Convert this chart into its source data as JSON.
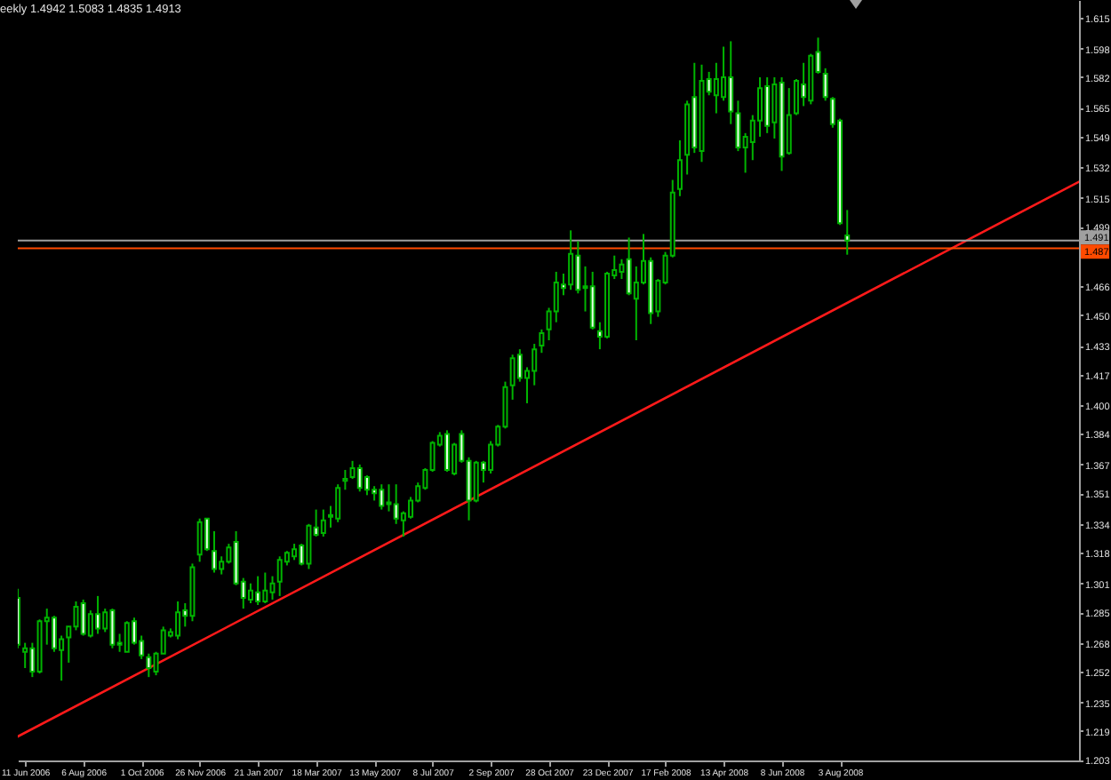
{
  "chart_data": {
    "type": "candlestick",
    "title": "eekly 1.4942 1.5083 1.4835 1.4913",
    "x": [
      "2006-06-04",
      "2006-06-11",
      "2006-06-18",
      "2006-06-25",
      "2006-07-02",
      "2006-07-09",
      "2006-07-16",
      "2006-07-23",
      "2006-07-30",
      "2006-08-06",
      "2006-08-13",
      "2006-08-20",
      "2006-08-27",
      "2006-09-03",
      "2006-09-10",
      "2006-09-17",
      "2006-09-24",
      "2006-10-01",
      "2006-10-08",
      "2006-10-15",
      "2006-10-22",
      "2006-10-29",
      "2006-11-05",
      "2006-11-12",
      "2006-11-19",
      "2006-11-26",
      "2006-12-03",
      "2006-12-10",
      "2006-12-17",
      "2006-12-24",
      "2006-12-31",
      "2007-01-07",
      "2007-01-14",
      "2007-01-21",
      "2007-01-28",
      "2007-02-04",
      "2007-02-11",
      "2007-02-18",
      "2007-02-25",
      "2007-03-04",
      "2007-03-11",
      "2007-03-18",
      "2007-03-25",
      "2007-04-01",
      "2007-04-08",
      "2007-04-15",
      "2007-04-22",
      "2007-04-29",
      "2007-05-06",
      "2007-05-13",
      "2007-05-20",
      "2007-05-27",
      "2007-06-03",
      "2007-06-10",
      "2007-06-17",
      "2007-06-24",
      "2007-07-01",
      "2007-07-08",
      "2007-07-15",
      "2007-07-22",
      "2007-07-29",
      "2007-08-05",
      "2007-08-12",
      "2007-08-19",
      "2007-08-26",
      "2007-09-02",
      "2007-09-09",
      "2007-09-16",
      "2007-09-23",
      "2007-09-30",
      "2007-10-07",
      "2007-10-14",
      "2007-10-21",
      "2007-10-28",
      "2007-11-04",
      "2007-11-11",
      "2007-11-18",
      "2007-11-25",
      "2007-12-02",
      "2007-12-09",
      "2007-12-16",
      "2007-12-23",
      "2007-12-30",
      "2008-01-06",
      "2008-01-13",
      "2008-01-20",
      "2008-01-27",
      "2008-02-03",
      "2008-02-10",
      "2008-02-17",
      "2008-02-24",
      "2008-03-02",
      "2008-03-09",
      "2008-03-16",
      "2008-03-23",
      "2008-03-30",
      "2008-04-06",
      "2008-04-13",
      "2008-04-20",
      "2008-04-27",
      "2008-05-04",
      "2008-05-11",
      "2008-05-18",
      "2008-05-25",
      "2008-06-01",
      "2008-06-08",
      "2008-06-15",
      "2008-06-22",
      "2008-06-29",
      "2008-07-06",
      "2008-07-13",
      "2008-07-20",
      "2008-07-27",
      "2008-08-03",
      "2008-08-10"
    ],
    "ohlc": [
      [
        1.293,
        1.298,
        1.265,
        1.267
      ],
      [
        1.263,
        1.268,
        1.254,
        1.265
      ],
      [
        1.265,
        1.268,
        1.249,
        1.252
      ],
      [
        1.252,
        1.281,
        1.251,
        1.28
      ],
      [
        1.28,
        1.287,
        1.267,
        1.282
      ],
      [
        1.282,
        1.283,
        1.263,
        1.265
      ],
      [
        1.264,
        1.272,
        1.247,
        1.27
      ],
      [
        1.271,
        1.277,
        1.257,
        1.277
      ],
      [
        1.277,
        1.291,
        1.275,
        1.288
      ],
      [
        1.29,
        1.292,
        1.272,
        1.273
      ],
      [
        1.272,
        1.286,
        1.271,
        1.284
      ],
      [
        1.284,
        1.294,
        1.273,
        1.276
      ],
      [
        1.276,
        1.287,
        1.274,
        1.285
      ],
      [
        1.286,
        1.287,
        1.265,
        1.267
      ],
      [
        1.268,
        1.273,
        1.263,
        1.267
      ],
      [
        1.263,
        1.28,
        1.263,
        1.279
      ],
      [
        1.28,
        1.282,
        1.267,
        1.268
      ],
      [
        1.269,
        1.272,
        1.259,
        1.261
      ],
      [
        1.26,
        1.262,
        1.249,
        1.254
      ],
      [
        1.252,
        1.263,
        1.25,
        1.262
      ],
      [
        1.262,
        1.277,
        1.262,
        1.275
      ],
      [
        1.272,
        1.276,
        1.271,
        1.274
      ],
      [
        1.272,
        1.291,
        1.27,
        1.285
      ],
      [
        1.286,
        1.29,
        1.277,
        1.283
      ],
      [
        1.283,
        1.312,
        1.28,
        1.31
      ],
      [
        1.317,
        1.337,
        1.313,
        1.335
      ],
      [
        1.337,
        1.337,
        1.319,
        1.32
      ],
      [
        1.319,
        1.33,
        1.307,
        1.309
      ],
      [
        1.309,
        1.316,
        1.306,
        1.313
      ],
      [
        1.313,
        1.323,
        1.312,
        1.321
      ],
      [
        1.324,
        1.33,
        1.3,
        1.301
      ],
      [
        1.302,
        1.304,
        1.287,
        1.293
      ],
      [
        1.292,
        1.301,
        1.29,
        1.297
      ],
      [
        1.296,
        1.305,
        1.289,
        1.291
      ],
      [
        1.291,
        1.307,
        1.29,
        1.297
      ],
      [
        1.296,
        1.305,
        1.292,
        1.301
      ],
      [
        1.302,
        1.316,
        1.294,
        1.314
      ],
      [
        1.313,
        1.319,
        1.311,
        1.318
      ],
      [
        1.316,
        1.323,
        1.314,
        1.32
      ],
      [
        1.322,
        1.323,
        1.311,
        1.312
      ],
      [
        1.312,
        1.334,
        1.309,
        1.333
      ],
      [
        1.332,
        1.342,
        1.327,
        1.328
      ],
      [
        1.329,
        1.342,
        1.327,
        1.336
      ],
      [
        1.338,
        1.344,
        1.332,
        1.339
      ],
      [
        1.337,
        1.356,
        1.335,
        1.354
      ],
      [
        1.358,
        1.364,
        1.353,
        1.359
      ],
      [
        1.36,
        1.369,
        1.359,
        1.365
      ],
      [
        1.365,
        1.367,
        1.352,
        1.354
      ],
      [
        1.36,
        1.361,
        1.35,
        1.353
      ],
      [
        1.353,
        1.355,
        1.347,
        1.351
      ],
      [
        1.353,
        1.356,
        1.342,
        1.344
      ],
      [
        1.345,
        1.356,
        1.341,
        1.346
      ],
      [
        1.345,
        1.356,
        1.334,
        1.337
      ],
      [
        1.336,
        1.341,
        1.327,
        1.34
      ],
      [
        1.338,
        1.349,
        1.337,
        1.347
      ],
      [
        1.347,
        1.357,
        1.346,
        1.355
      ],
      [
        1.354,
        1.365,
        1.353,
        1.364
      ],
      [
        1.364,
        1.38,
        1.363,
        1.379
      ],
      [
        1.378,
        1.385,
        1.377,
        1.383
      ],
      [
        1.384,
        1.386,
        1.363,
        1.364
      ],
      [
        1.362,
        1.379,
        1.361,
        1.378
      ],
      [
        1.384,
        1.386,
        1.368,
        1.369
      ],
      [
        1.369,
        1.371,
        1.336,
        1.347
      ],
      [
        1.347,
        1.369,
        1.346,
        1.368
      ],
      [
        1.368,
        1.369,
        1.357,
        1.364
      ],
      [
        1.364,
        1.38,
        1.362,
        1.378
      ],
      [
        1.378,
        1.389,
        1.377,
        1.388
      ],
      [
        1.388,
        1.413,
        1.387,
        1.41
      ],
      [
        1.411,
        1.428,
        1.403,
        1.426
      ],
      [
        1.428,
        1.431,
        1.413,
        1.415
      ],
      [
        1.415,
        1.421,
        1.401,
        1.419
      ],
      [
        1.419,
        1.434,
        1.411,
        1.431
      ],
      [
        1.433,
        1.442,
        1.429,
        1.44
      ],
      [
        1.442,
        1.454,
        1.436,
        1.452
      ],
      [
        1.452,
        1.474,
        1.446,
        1.468
      ],
      [
        1.467,
        1.473,
        1.461,
        1.465
      ],
      [
        1.467,
        1.497,
        1.464,
        1.484
      ],
      [
        1.483,
        1.491,
        1.462,
        1.464
      ],
      [
        1.466,
        1.477,
        1.452,
        1.465
      ],
      [
        1.466,
        1.474,
        1.442,
        1.443
      ],
      [
        1.441,
        1.446,
        1.431,
        1.438
      ],
      [
        1.438,
        1.474,
        1.437,
        1.473
      ],
      [
        1.472,
        1.483,
        1.47,
        1.475
      ],
      [
        1.474,
        1.481,
        1.47,
        1.478
      ],
      [
        1.481,
        1.493,
        1.461,
        1.462
      ],
      [
        1.459,
        1.477,
        1.436,
        1.468
      ],
      [
        1.468,
        1.495,
        1.467,
        1.48
      ],
      [
        1.48,
        1.482,
        1.445,
        1.451
      ],
      [
        1.452,
        1.47,
        1.449,
        1.469
      ],
      [
        1.468,
        1.485,
        1.467,
        1.483
      ],
      [
        1.483,
        1.525,
        1.482,
        1.518
      ],
      [
        1.52,
        1.547,
        1.516,
        1.536
      ],
      [
        1.539,
        1.569,
        1.528,
        1.567
      ],
      [
        1.571,
        1.59,
        1.54,
        1.543
      ],
      [
        1.541,
        1.589,
        1.535,
        1.58
      ],
      [
        1.581,
        1.585,
        1.572,
        1.574
      ],
      [
        1.572,
        1.59,
        1.562,
        1.581
      ],
      [
        1.571,
        1.599,
        1.569,
        1.582
      ],
      [
        1.582,
        1.602,
        1.556,
        1.563
      ],
      [
        1.562,
        1.569,
        1.541,
        1.543
      ],
      [
        1.543,
        1.551,
        1.529,
        1.549
      ],
      [
        1.546,
        1.561,
        1.536,
        1.558
      ],
      [
        1.558,
        1.582,
        1.549,
        1.576
      ],
      [
        1.577,
        1.582,
        1.551,
        1.555
      ],
      [
        1.557,
        1.582,
        1.548,
        1.578
      ],
      [
        1.579,
        1.582,
        1.53,
        1.538
      ],
      [
        1.54,
        1.576,
        1.539,
        1.561
      ],
      [
        1.562,
        1.581,
        1.561,
        1.58
      ],
      [
        1.578,
        1.59,
        1.566,
        1.571
      ],
      [
        1.569,
        1.595,
        1.567,
        1.594
      ],
      [
        1.596,
        1.604,
        1.584,
        1.585
      ],
      [
        1.584,
        1.587,
        1.569,
        1.571
      ],
      [
        1.57,
        1.571,
        1.554,
        1.556
      ],
      [
        1.558,
        1.559,
        1.5,
        1.501
      ],
      [
        1.4942,
        1.5083,
        1.4835,
        1.4913
      ]
    ],
    "colors": [
      "#e8ffe8",
      "#000000",
      "#e8ffe8",
      "#000000",
      "#000000",
      "#e8ffe8",
      "#000000",
      "#000000",
      "#000000",
      "#e8ffe8",
      "#000000",
      "#e8ffe8",
      "#000000",
      "#e8ffe8",
      "#e8ffe8",
      "#000000",
      "#e8ffe8",
      "#e8ffe8",
      "#e8ffe8",
      "#000000",
      "#000000",
      "#000000",
      "#000000",
      "#e8ffe8",
      "#000000",
      "#000000",
      "#e8ffe8",
      "#e8ffe8",
      "#000000",
      "#000000",
      "#e8ffe8",
      "#e8ffe8",
      "#000000",
      "#e8ffe8",
      "#000000",
      "#000000",
      "#000000",
      "#000000",
      "#000000",
      "#e8ffe8",
      "#000000",
      "#e8ffe8",
      "#000000",
      "#000000",
      "#000000",
      "#000000",
      "#000000",
      "#e8ffe8",
      "#e8ffe8",
      "#e8ffe8",
      "#e8ffe8",
      "#000000",
      "#e8ffe8",
      "#000000",
      "#000000",
      "#000000",
      "#000000",
      "#000000",
      "#000000",
      "#e8ffe8",
      "#000000",
      "#e8ffe8",
      "#e8ffe8",
      "#000000",
      "#e8ffe8",
      "#000000",
      "#000000",
      "#000000",
      "#000000",
      "#e8ffe8",
      "#000000",
      "#000000",
      "#000000",
      "#000000",
      "#000000",
      "#e8ffe8",
      "#000000",
      "#e8ffe8",
      "#e8ffe8",
      "#e8ffe8",
      "#e8ffe8",
      "#000000",
      "#000000",
      "#000000",
      "#e8ffe8",
      "#000000",
      "#000000",
      "#e8ffe8",
      "#000000",
      "#000000",
      "#000000",
      "#000000",
      "#000000",
      "#e8ffe8",
      "#000000",
      "#e8ffe8",
      "#000000",
      "#000000",
      "#e8ffe8",
      "#e8ffe8",
      "#000000",
      "#000000",
      "#000000",
      "#e8ffe8",
      "#000000",
      "#e8ffe8",
      "#000000",
      "#000000",
      "#e8ffe8",
      "#000000",
      "#e8ffe8",
      "#e8ffe8",
      "#e8ffe8",
      "#e8ffe8",
      "#e8ffe8"
    ],
    "color": "#00b400",
    "series": [
      {
        "type": "line",
        "color": "#ff1a1a",
        "x": [
          "2006-06-04",
          "2009-03-21"
        ],
        "values": [
          1.216,
          1.524
        ]
      }
    ],
    "ref_lines": [
      {
        "axis": "y",
        "value": 1.4913,
        "label": "1.491",
        "color": "#a0a0a0"
      },
      {
        "axis": "y",
        "value": 1.487,
        "label": "1.487",
        "color": "#ff4a00"
      }
    ],
    "xlim": [
      "2006-06-04",
      "2009-03-21"
    ],
    "ylim": [
      1.2027,
      1.6249
    ],
    "xticks": [
      {
        "value": "2006-06-11",
        "label": "11 Jun 2006"
      },
      {
        "value": "2006-08-06",
        "label": "6 Aug 2006"
      },
      {
        "value": "2006-10-01",
        "label": "1 Oct 2006"
      },
      {
        "value": "2006-11-26",
        "label": "26 Nov 2006"
      },
      {
        "value": "2007-01-21",
        "label": "21 Jan 2007"
      },
      {
        "value": "2007-03-18",
        "label": "18 Mar 2007"
      },
      {
        "value": "2007-05-13",
        "label": "13 May 2007"
      },
      {
        "value": "2007-07-08",
        "label": "8 Jul 2007"
      },
      {
        "value": "2007-09-02",
        "label": "2 Sep 2007"
      },
      {
        "value": "2007-10-28",
        "label": "28 Oct 2007"
      },
      {
        "value": "2007-12-23",
        "label": "23 Dec 2007"
      },
      {
        "value": "2008-02-17",
        "label": "17 Feb 2008"
      },
      {
        "value": "2008-04-13",
        "label": "13 Apr 2008"
      },
      {
        "value": "2008-06-08",
        "label": "8 Jun 2008"
      },
      {
        "value": "2008-08-03",
        "label": "3 Aug 2008"
      }
    ],
    "yticks": [
      1.203,
      1.219,
      1.235,
      1.252,
      1.268,
      1.285,
      1.301,
      1.318,
      1.334,
      1.351,
      1.367,
      1.384,
      {
        "value": 1.4,
        "label": "1.400"
      },
      1.417,
      1.433,
      {
        "value": 1.45,
        "label": "1.450"
      },
      1.466,
      1.499,
      1.515,
      1.532,
      1.549,
      1.565,
      1.582,
      1.598,
      1.615
    ]
  }
}
